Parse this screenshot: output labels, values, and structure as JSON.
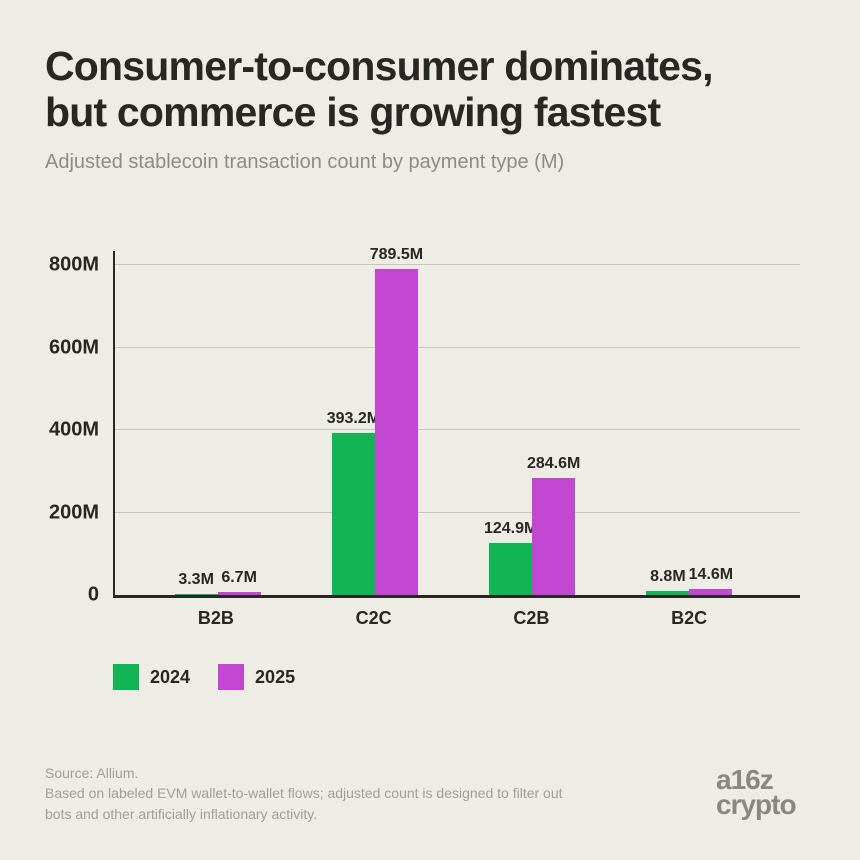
{
  "page": {
    "background": "#EDECE5"
  },
  "header": {
    "title": "Consumer-to-consumer dominates,\nbut commerce is growing fastest",
    "subtitle": "Adjusted stablecoin transaction count by payment type (M)"
  },
  "chart_data": {
    "type": "bar",
    "title": "Adjusted stablecoin transaction count by payment type (M)",
    "categories": [
      "B2B",
      "C2C",
      "C2B",
      "B2C"
    ],
    "series": [
      {
        "name": "2024",
        "color": "#12B556",
        "values": [
          3.3,
          393.2,
          124.9,
          8.8
        ],
        "value_labels": [
          "3.3M",
          "393.2M",
          "124.9M",
          "8.8M"
        ]
      },
      {
        "name": "2025",
        "color": "#C348D1",
        "values": [
          6.7,
          789.5,
          284.6,
          14.6
        ],
        "value_labels": [
          "6.7M",
          "789.5M",
          "284.6M",
          "14.6M"
        ]
      }
    ],
    "xlabel": "",
    "ylabel": "",
    "ylim": [
      0,
      800
    ],
    "yticks": [
      {
        "value": 0,
        "label": "0"
      },
      {
        "value": 200,
        "label": "200M"
      },
      {
        "value": 400,
        "label": "400M"
      },
      {
        "value": 600,
        "label": "600M"
      },
      {
        "value": 800,
        "label": "800M"
      }
    ],
    "unit": "M",
    "grid": true,
    "legend_position": "bottom-left"
  },
  "footer": {
    "source": "Source: Allium.\nBased on labeled EVM wallet-to-wallet flows; adjusted count is designed to filter out\nbots and other artificially inflationary activity.",
    "logo": {
      "line1": "a16z",
      "line2": "crypto"
    }
  },
  "colors": {
    "background": "#EDECE5",
    "title": "#2B2523",
    "subtitle": "#8F8A84",
    "axis": "#2B2523",
    "gridline": "#C8C5BC",
    "series_2024": "#12B556",
    "series_2025": "#C348D1",
    "source_text": "#A39D96",
    "logo": "#8D8680"
  }
}
